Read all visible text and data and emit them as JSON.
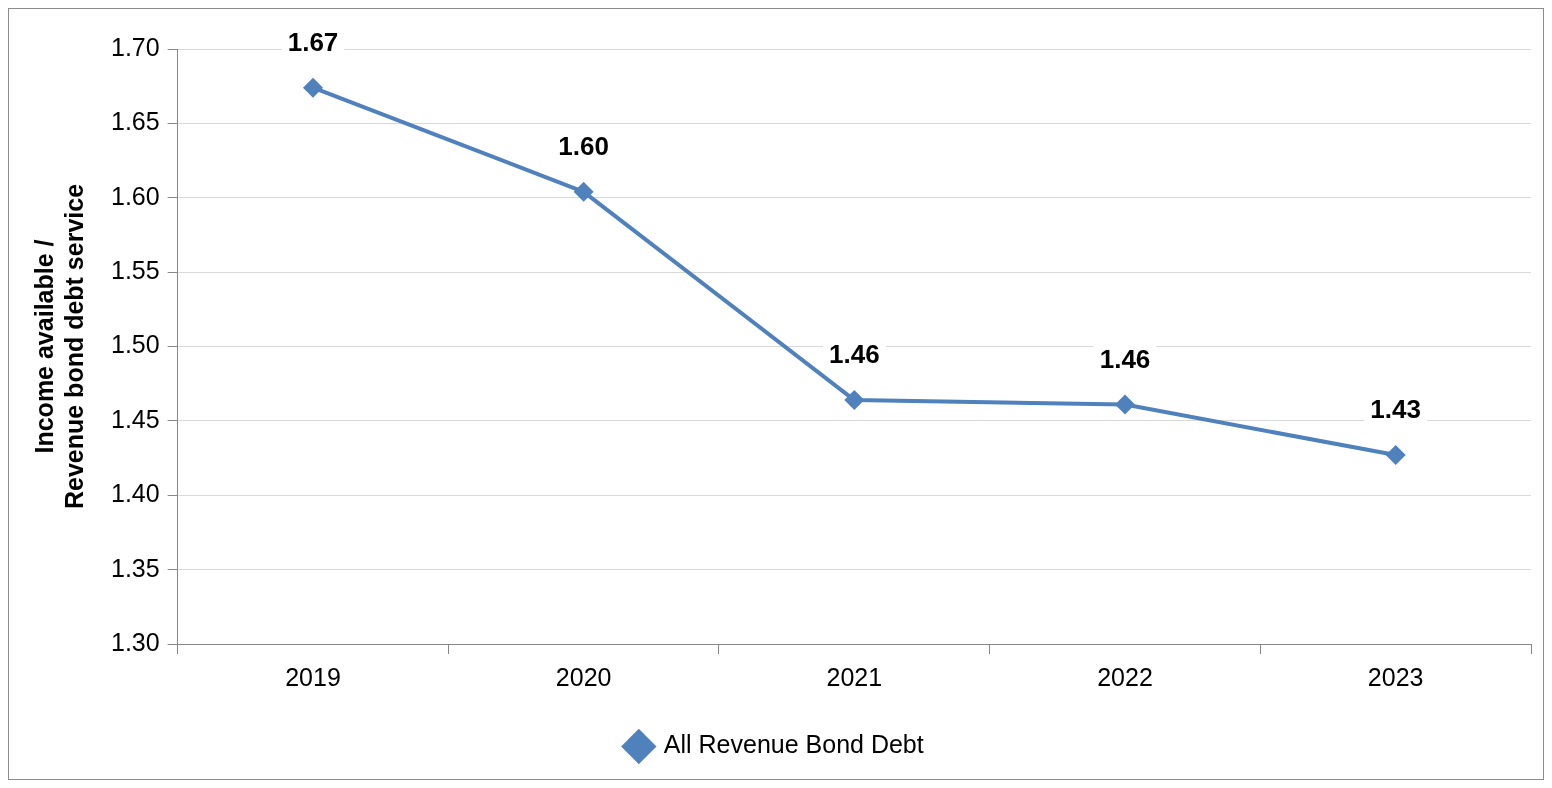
{
  "chart_data": {
    "type": "line",
    "ylabel": "Income available / Revenue bond debt service",
    "categories": [
      "2019",
      "2020",
      "2021",
      "2022",
      "2023"
    ],
    "series": [
      {
        "name": "All Revenue Bond Debt",
        "color": "#4f81bd",
        "values": [
          1.674,
          1.604,
          1.464,
          1.461,
          1.427
        ],
        "value_labels": [
          "1.67",
          "1.60",
          "1.46",
          "1.46",
          "1.43"
        ]
      }
    ],
    "ylim": [
      1.3,
      1.7
    ],
    "yticks": [
      {
        "value": 1.3,
        "label": "1.30"
      },
      {
        "value": 1.35,
        "label": "1.35"
      },
      {
        "value": 1.4,
        "label": "1.40"
      },
      {
        "value": 1.45,
        "label": "1.45"
      },
      {
        "value": 1.5,
        "label": "1.50"
      },
      {
        "value": 1.55,
        "label": "1.55"
      },
      {
        "value": 1.6,
        "label": "1.60"
      },
      {
        "value": 1.65,
        "label": "1.65"
      },
      {
        "value": 1.7,
        "label": "1.70"
      }
    ],
    "grid": "y",
    "legend": "bottom",
    "marker": "diamond",
    "line_style": "solid"
  }
}
